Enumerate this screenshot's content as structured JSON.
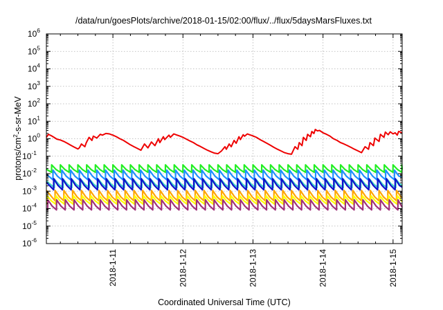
{
  "chart_data": {
    "type": "line",
    "title": "/data/run/goesPlots/archive/2018-01-15/02:00/flux/../flux/5daysMarsFluxes.txt",
    "xlabel": "Coordinated Universal Time (UTC)",
    "ylabel_base": "protons/cm",
    "ylabel_sup": "2",
    "ylabel_rest": "-s-sr-MeV",
    "yscale": "log",
    "ylim": [
      1e-06,
      1000000.0
    ],
    "y_tick_exponents": [
      -6,
      -5,
      -4,
      -3,
      -2,
      -1,
      0,
      1,
      2,
      3,
      4,
      5,
      6
    ],
    "y_tick_base": "10",
    "x_range_days": [
      10.05,
      15.13
    ],
    "x_ticks": [
      {
        "label": "2018-1-11",
        "day": 11
      },
      {
        "label": "2018-1-12",
        "day": 12
      },
      {
        "label": "2018-1-13",
        "day": 13
      },
      {
        "label": "2018-1-14",
        "day": 14
      },
      {
        "label": "2018-1-15",
        "day": 15
      }
    ],
    "grid": true,
    "legend": "none",
    "series": [
      {
        "color": "#ee0000",
        "x": [
          10.05,
          10.08,
          10.12,
          10.16,
          10.2,
          10.25,
          10.3,
          10.35,
          10.4,
          10.45,
          10.5,
          10.52,
          10.55,
          10.6,
          10.62,
          10.66,
          10.7,
          10.72,
          10.77,
          10.82,
          10.85,
          10.9,
          10.95,
          10.98,
          11.0,
          11.05,
          11.1,
          11.15,
          11.2,
          11.25,
          11.3,
          11.35,
          11.4,
          11.45,
          11.5,
          11.55,
          11.6,
          11.65,
          11.67,
          11.72,
          11.74,
          11.8,
          11.82,
          11.87,
          11.9,
          11.94,
          11.96,
          12.0,
          12.05,
          12.1,
          12.15,
          12.2,
          12.25,
          12.3,
          12.35,
          12.4,
          12.45,
          12.5,
          12.55,
          12.6,
          12.62,
          12.66,
          12.69,
          12.73,
          12.76,
          12.8,
          12.82,
          12.86,
          12.88,
          12.92,
          12.95,
          12.98,
          13.0,
          13.05,
          13.1,
          13.15,
          13.2,
          13.25,
          13.3,
          13.35,
          13.4,
          13.45,
          13.5,
          13.55,
          13.6,
          13.64,
          13.66,
          13.7,
          13.72,
          13.76,
          13.78,
          13.82,
          13.84,
          13.87,
          13.89,
          13.92,
          13.95,
          13.98,
          14.0,
          14.05,
          14.1,
          14.15,
          14.2,
          14.25,
          14.3,
          14.35,
          14.4,
          14.45,
          14.5,
          14.55,
          14.6,
          14.65,
          14.67,
          14.72,
          14.74,
          14.8,
          14.82,
          14.87,
          14.89,
          14.93,
          14.96,
          15.0,
          15.03,
          15.06,
          15.08,
          15.11,
          15.13
        ],
        "y": [
          1.2,
          1.8,
          1.5,
          1.2,
          0.95,
          0.85,
          0.7,
          0.55,
          0.42,
          0.33,
          0.26,
          0.3,
          0.5,
          0.35,
          0.6,
          1.2,
          0.8,
          1.4,
          1.1,
          1.8,
          1.6,
          2.0,
          1.9,
          1.7,
          1.6,
          1.3,
          1.0,
          0.8,
          0.6,
          0.45,
          0.35,
          0.28,
          0.22,
          0.5,
          0.3,
          0.65,
          0.4,
          1.0,
          0.6,
          1.3,
          0.9,
          1.6,
          1.2,
          1.9,
          1.7,
          1.5,
          1.4,
          1.2,
          0.95,
          0.75,
          0.6,
          0.45,
          0.36,
          0.28,
          0.22,
          0.18,
          0.15,
          0.14,
          0.2,
          0.35,
          0.25,
          0.5,
          0.35,
          0.8,
          0.55,
          1.3,
          0.9,
          1.7,
          1.4,
          1.9,
          1.7,
          1.55,
          1.45,
          1.2,
          0.9,
          0.7,
          0.55,
          0.42,
          0.32,
          0.25,
          0.2,
          0.16,
          0.14,
          0.13,
          0.35,
          0.25,
          0.6,
          0.4,
          1.2,
          0.8,
          1.8,
          1.3,
          2.6,
          2.0,
          3.4,
          2.8,
          3.0,
          2.5,
          2.2,
          1.8,
          1.4,
          1.0,
          0.8,
          0.6,
          0.5,
          0.4,
          0.32,
          0.25,
          0.2,
          0.16,
          0.35,
          0.25,
          0.6,
          0.4,
          1.1,
          0.7,
          1.8,
          1.2,
          2.4,
          1.7,
          2.5,
          1.9,
          2.2,
          1.6,
          2.6,
          2.4,
          2.1
        ]
      },
      {
        "color": "#22ee22",
        "base": 0.012,
        "peak": 0.032,
        "interval": 0.125,
        "phase": 0.0
      },
      {
        "color": "#1e90ff",
        "base": 0.0045,
        "peak": 0.016,
        "interval": 0.125,
        "phase": 0.02
      },
      {
        "color": "#40d8c8",
        "base": 0.0016,
        "peak": 0.0048,
        "interval": 0.125,
        "phase": 0.04
      },
      {
        "color": "#1010cc",
        "base": 0.0012,
        "peak": 0.0052,
        "interval": 0.125,
        "phase": 0.03
      },
      {
        "color": "#ffa500",
        "base": 0.00028,
        "peak": 0.0011,
        "interval": 0.125,
        "phase": 0.05
      },
      {
        "color": "#ffff00",
        "base": 0.00018,
        "peak": 0.00055,
        "interval": 0.125,
        "phase": 0.06
      },
      {
        "color": "#a0307a",
        "base": 8.5e-05,
        "peak": 0.00032,
        "interval": 0.125,
        "phase": 0.07
      }
    ]
  }
}
